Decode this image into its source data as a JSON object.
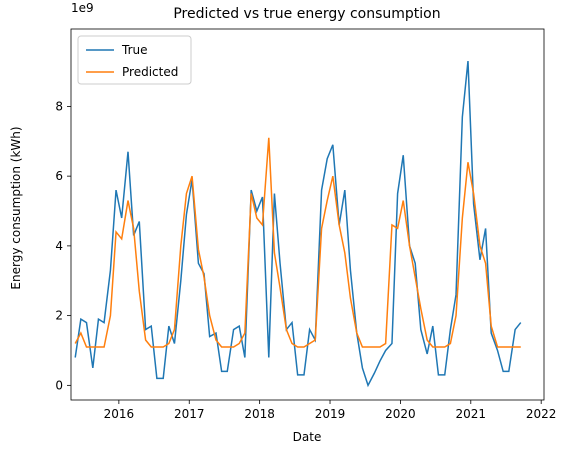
{
  "chart_data": {
    "type": "line",
    "title": "Predicted vs true energy consumption",
    "x_label": "Date",
    "y_label": "Energy consumption (kWh)",
    "y_offset_label": "1e9",
    "x": [
      2015.38,
      2015.46,
      2015.54,
      2015.63,
      2015.71,
      2015.79,
      2015.88,
      2015.96,
      2016.04,
      2016.13,
      2016.21,
      2016.29,
      2016.38,
      2016.46,
      2016.54,
      2016.63,
      2016.71,
      2016.79,
      2016.88,
      2016.96,
      2017.04,
      2017.13,
      2017.21,
      2017.29,
      2017.38,
      2017.46,
      2017.54,
      2017.63,
      2017.71,
      2017.79,
      2017.88,
      2017.96,
      2018.04,
      2018.13,
      2018.21,
      2018.29,
      2018.38,
      2018.46,
      2018.54,
      2018.63,
      2018.71,
      2018.79,
      2018.88,
      2018.96,
      2019.04,
      2019.13,
      2019.21,
      2019.29,
      2019.38,
      2019.46,
      2019.54,
      2019.63,
      2019.71,
      2019.79,
      2019.88,
      2019.96,
      2020.04,
      2020.13,
      2020.21,
      2020.29,
      2020.38,
      2020.46,
      2020.54,
      2020.63,
      2020.71,
      2020.79,
      2020.88,
      2020.96,
      2021.04,
      2021.13,
      2021.21,
      2021.29,
      2021.38,
      2021.46,
      2021.54,
      2021.63,
      2021.71
    ],
    "series": [
      {
        "name": "True",
        "color": "#1f77b4",
        "values": [
          0.8,
          1.9,
          1.8,
          0.5,
          1.9,
          1.8,
          3.3,
          5.6,
          4.8,
          6.7,
          4.3,
          4.7,
          1.6,
          1.7,
          0.2,
          0.2,
          1.7,
          1.2,
          3.0,
          4.9,
          5.9,
          3.5,
          3.2,
          1.4,
          1.5,
          0.4,
          0.4,
          1.6,
          1.7,
          0.8,
          5.6,
          5.0,
          5.4,
          0.8,
          5.5,
          3.5,
          1.6,
          1.8,
          0.3,
          0.3,
          1.6,
          1.3,
          5.6,
          6.5,
          6.9,
          4.6,
          5.6,
          3.3,
          1.5,
          0.5,
          0.0,
          0.35,
          0.7,
          1.0,
          1.2,
          5.5,
          6.6,
          4.0,
          3.5,
          1.6,
          0.9,
          1.7,
          0.3,
          0.3,
          1.6,
          2.6,
          7.7,
          9.3,
          5.2,
          3.6,
          4.5,
          1.5,
          1.0,
          0.4,
          0.4,
          1.6,
          1.8
        ]
      },
      {
        "name": "Predicted",
        "color": "#ff7f0e",
        "values": [
          1.2,
          1.5,
          1.1,
          1.1,
          1.1,
          1.1,
          2.0,
          4.4,
          4.2,
          5.3,
          4.5,
          2.7,
          1.3,
          1.1,
          1.1,
          1.1,
          1.2,
          1.6,
          4.0,
          5.5,
          6.0,
          3.9,
          3.1,
          2.0,
          1.3,
          1.1,
          1.1,
          1.1,
          1.2,
          1.5,
          5.5,
          4.8,
          4.6,
          7.1,
          3.8,
          2.8,
          1.6,
          1.2,
          1.1,
          1.1,
          1.2,
          1.3,
          4.5,
          5.3,
          6.0,
          4.6,
          3.8,
          2.5,
          1.5,
          1.1,
          1.1,
          1.1,
          1.1,
          1.2,
          4.6,
          4.5,
          5.3,
          4.0,
          3.1,
          2.2,
          1.3,
          1.1,
          1.1,
          1.1,
          1.2,
          2.0,
          4.8,
          6.4,
          5.5,
          4.0,
          3.5,
          1.7,
          1.1,
          1.1,
          1.1,
          1.1,
          1.1
        ]
      }
    ],
    "xlim": [
      2015.32,
      2022.04
    ],
    "xticks": [
      2016,
      2017,
      2018,
      2019,
      2020,
      2021,
      2022
    ],
    "ylim": [
      -0.42,
      10.22
    ],
    "yticks": [
      0,
      2,
      4,
      6,
      8
    ],
    "grid": false,
    "legend": "upper left"
  }
}
